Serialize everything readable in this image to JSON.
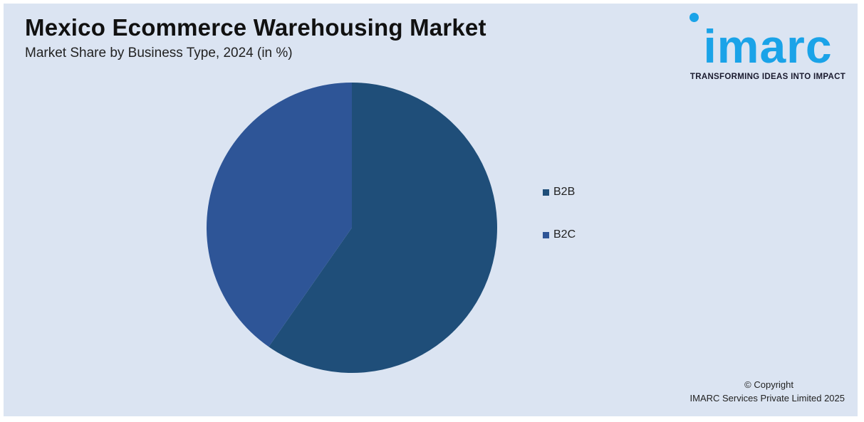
{
  "title": "Mexico Ecommerce Warehousing Market",
  "subtitle": "Market Share by Business Type, 2024 (in %)",
  "logo": {
    "text": "imarc",
    "tagline": "TRANSFORMING IDEAS INTO IMPACT"
  },
  "copyright": {
    "line1": "© Copyright",
    "line2": "IMARC Services Private Limited 2025"
  },
  "chart_data": {
    "type": "pie",
    "title": "Mexico Ecommerce Warehousing Market",
    "subtitle": "Market Share by Business Type, 2024 (in %)",
    "categories": [
      "B2B",
      "B2C"
    ],
    "values": [
      59.7,
      40.3
    ],
    "colors": [
      "#1f4e79",
      "#2e5597"
    ],
    "start_angle_deg": 0,
    "direction": "clockwise",
    "legend": "right"
  }
}
